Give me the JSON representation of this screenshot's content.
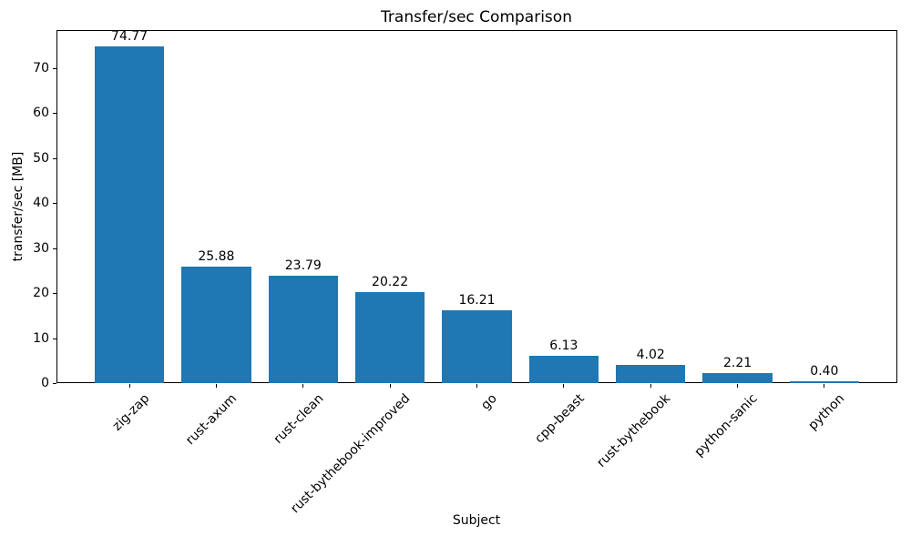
{
  "chart_data": {
    "type": "bar",
    "title": "Transfer/sec Comparison",
    "xlabel": "Subject",
    "ylabel": "transfer/sec [MB]",
    "categories": [
      "zig-zap",
      "rust-axum",
      "rust-clean",
      "rust-bythebook-improved",
      "go",
      "cpp-beast",
      "rust-bythebook",
      "python-sanic",
      "python"
    ],
    "values": [
      74.77,
      25.88,
      23.79,
      20.22,
      16.21,
      6.13,
      4.02,
      2.21,
      0.4
    ],
    "bar_labels": [
      "74.77",
      "25.88",
      "23.79",
      "20.22",
      "16.21",
      "6.13",
      "4.02",
      "2.21",
      "0.40"
    ],
    "yticks": [
      0,
      10,
      20,
      30,
      40,
      50,
      60,
      70
    ],
    "ylim": [
      0,
      78.5
    ],
    "bar_color": "#1f77b4",
    "bar_width": 0.8,
    "x_tick_rotation_deg": 45,
    "grid": false,
    "legend": "none"
  }
}
